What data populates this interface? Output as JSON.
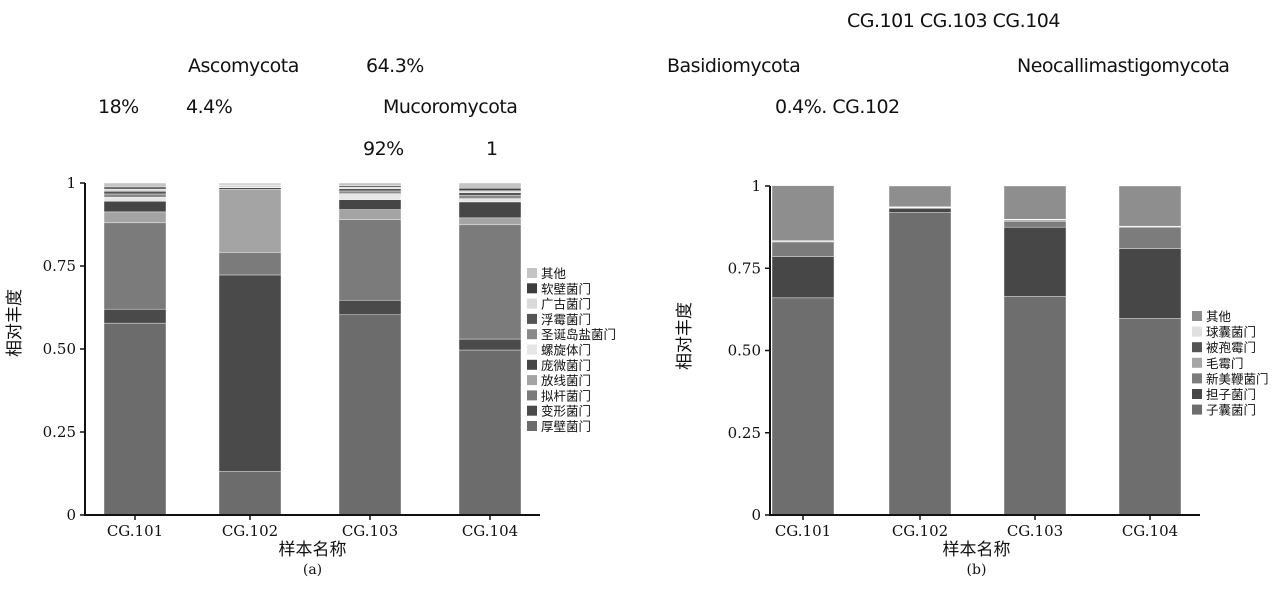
{
  "text_fragments": [
    "CG.101  CG.103  CG.104",
    "Ascomycota",
    "64.3%",
    "Basidiomycota",
    "Neocallimastigomycota",
    "18%",
    "4.4%",
    "Mucoromycota",
    "0.4%. CG.102",
    "92%",
    "1"
  ],
  "chart_data": [
    {
      "type": "bar",
      "stacked": true,
      "panel_label": "(a)",
      "xlabel": "样本名称",
      "ylabel": "相对丰度",
      "ylim": [
        0,
        1
      ],
      "yticks": [
        "0",
        "0.25",
        "0.50",
        "0.75",
        "1"
      ],
      "categories": [
        "CG.101",
        "CG.102",
        "CG.103",
        "CG.104"
      ],
      "legend_position": "right",
      "series": [
        {
          "name": "厚壁菌门",
          "color": "#6c6c6c",
          "values": [
            0.578,
            0.131,
            0.603,
            0.497
          ]
        },
        {
          "name": "变形菌门",
          "color": "#4a4a4a",
          "values": [
            0.042,
            0.592,
            0.044,
            0.033
          ]
        },
        {
          "name": "拟杆菌门",
          "color": "#7b7b7b",
          "values": [
            0.26,
            0.068,
            0.243,
            0.344
          ]
        },
        {
          "name": "放线菌门",
          "color": "#a4a4a4",
          "values": [
            0.033,
            0.19,
            0.03,
            0.021
          ]
        },
        {
          "name": "庞微菌门",
          "color": "#464646",
          "values": [
            0.032,
            0.005,
            0.03,
            0.048
          ]
        },
        {
          "name": "螺旋体门",
          "color": "#e6e6e6",
          "values": [
            0.012,
            0.002,
            0.018,
            0.01
          ]
        },
        {
          "name": "圣诞岛盐菌门",
          "color": "#8a8a8a",
          "values": [
            0.01,
            0.002,
            0.008,
            0.01
          ]
        },
        {
          "name": "浮霉菌门",
          "color": "#555555",
          "values": [
            0.008,
            0.002,
            0.007,
            0.008
          ]
        },
        {
          "name": "广古菌门",
          "color": "#d9d9d9",
          "values": [
            0.007,
            0.003,
            0.005,
            0.006
          ]
        },
        {
          "name": "软壁菌门",
          "color": "#3d3d3d",
          "values": [
            0.006,
            0.002,
            0.004,
            0.007
          ]
        },
        {
          "name": "其他",
          "color": "#c4c4c4",
          "values": [
            0.012,
            0.003,
            0.008,
            0.016
          ]
        }
      ]
    },
    {
      "type": "bar",
      "stacked": true,
      "panel_label": "(b)",
      "xlabel": "样本名称",
      "ylabel": "相对丰度",
      "ylim": [
        0,
        1
      ],
      "yticks": [
        "0",
        "0.25",
        "0.50",
        "0.75",
        "1"
      ],
      "categories": [
        "CG.101",
        "CG.102",
        "CG.103",
        "CG.104"
      ],
      "legend_position": "right",
      "series": [
        {
          "name": "子囊菌门",
          "color": "#6e6e6e",
          "values": [
            0.66,
            0.92,
            0.665,
            0.598
          ]
        },
        {
          "name": "担子菌门",
          "color": "#474747",
          "values": [
            0.125,
            0.012,
            0.21,
            0.212
          ]
        },
        {
          "name": "新美鞭菌门",
          "color": "#7c7c7c",
          "values": [
            0.045,
            0.002,
            0.018,
            0.065
          ]
        },
        {
          "name": "毛霉门",
          "color": "#a6a6a6",
          "values": [
            0.002,
            0.001,
            0.004,
            0.001
          ]
        },
        {
          "name": "被孢霉门",
          "color": "#555555",
          "values": [
            0.001,
            0.001,
            0.001,
            0.001
          ]
        },
        {
          "name": "球囊菌门",
          "color": "#e0e0e0",
          "values": [
            0.001,
            0.001,
            0.001,
            0.001
          ]
        },
        {
          "name": "其他",
          "color": "#8e8e8e",
          "values": [
            0.167,
            0.063,
            0.101,
            0.122
          ]
        }
      ]
    }
  ]
}
